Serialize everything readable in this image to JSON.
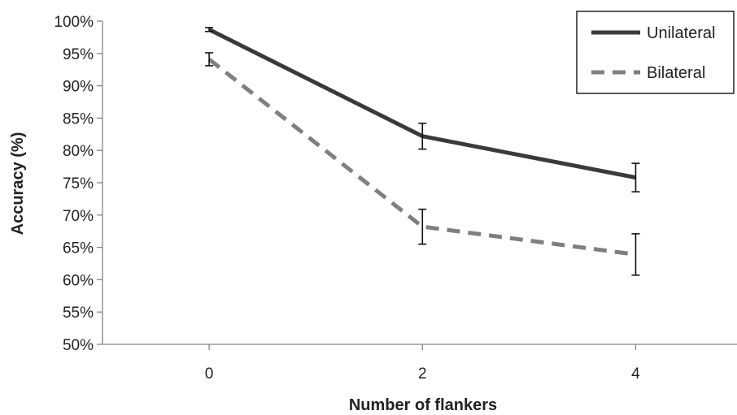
{
  "chart_data": {
    "type": "line",
    "title": "",
    "xlabel": "Number of flankers",
    "ylabel": "Accuracy (%)",
    "categories": [
      "0",
      "2",
      "4"
    ],
    "x": [
      0,
      2,
      4
    ],
    "ylim": [
      50,
      100
    ],
    "ytick_step": 5,
    "yticks": [
      "50%",
      "55%",
      "60%",
      "65%",
      "70%",
      "75%",
      "80%",
      "85%",
      "90%",
      "95%",
      "100%"
    ],
    "grid": false,
    "legend_position": "top-right",
    "series": [
      {
        "name": "Unilateral",
        "values": [
          98.7,
          82.2,
          75.8
        ],
        "error": [
          0.3,
          2.0,
          2.2
        ],
        "line_style": "solid",
        "color": "#3a3a3a"
      },
      {
        "name": "Bilateral",
        "values": [
          94.1,
          68.2,
          63.9
        ],
        "error": [
          1.0,
          2.7,
          3.2
        ],
        "line_style": "dashed",
        "color": "#7f7f7f"
      }
    ]
  }
}
